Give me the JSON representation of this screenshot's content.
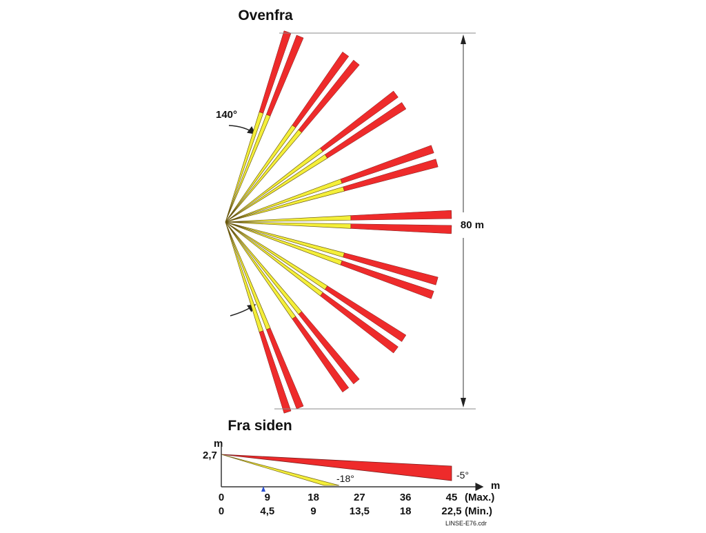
{
  "top_view": {
    "title": "Ovenfra",
    "angle_label": "140°",
    "range_label": "80 m"
  },
  "side_view": {
    "title": "Fra siden",
    "y_unit": "m",
    "height_label": "2,7",
    "x_unit": "m",
    "yellow_angle": "-18°",
    "red_angle": "-5°",
    "max_row": {
      "ticks": [
        "0",
        "9",
        "18",
        "27",
        "36",
        "45"
      ],
      "label": "(Max.)"
    },
    "min_row": {
      "ticks": [
        "0",
        "4,5",
        "9",
        "13,5",
        "18",
        "22,5"
      ],
      "label": "(Min.)"
    }
  },
  "footer": {
    "file_name": "LINSE-E76.cdr"
  }
}
